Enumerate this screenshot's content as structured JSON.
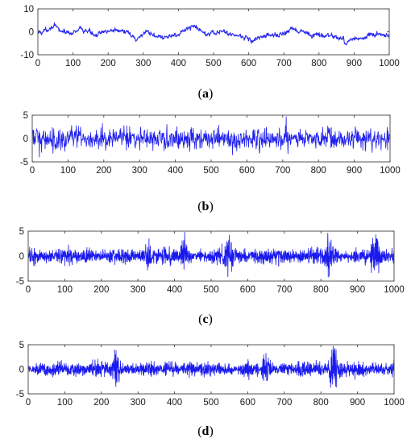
{
  "figure": {
    "panels": [
      {
        "caption_letter": "a"
      },
      {
        "caption_letter": "b"
      },
      {
        "caption_letter": "c"
      },
      {
        "caption_letter": "d"
      }
    ]
  },
  "chart_data": [
    {
      "type": "line",
      "panel": "a",
      "title": "",
      "xlabel": "",
      "ylabel": "",
      "xlim": [
        0,
        1000
      ],
      "ylim": [
        -10,
        10
      ],
      "xticks": [
        0,
        100,
        200,
        300,
        400,
        500,
        600,
        700,
        800,
        900,
        1000
      ],
      "yticks": [
        10,
        0,
        -10
      ],
      "series_color": "#2a2aee",
      "legend": "none",
      "grid": false,
      "series": [
        {
          "n_points": 1000,
          "profile_x": [
            0,
            20,
            40,
            55,
            70,
            100,
            120,
            150,
            170,
            200,
            230,
            260,
            280,
            300,
            330,
            360,
            400,
            420,
            450,
            470,
            500,
            530,
            560,
            590,
            610,
            640,
            670,
            700,
            720,
            750,
            780,
            800,
            830,
            860,
            880,
            900,
            920,
            950,
            980,
            1000
          ],
          "profile_y": [
            -0.5,
            0.5,
            2.5,
            1.5,
            0,
            -0.5,
            1,
            0,
            -1.5,
            0.5,
            1,
            -1,
            -3.5,
            -0.5,
            -1.5,
            -2.5,
            -1,
            1,
            2.5,
            0,
            -0.5,
            0,
            -1.5,
            -2,
            -4,
            -2,
            -1.5,
            -1,
            1,
            0,
            -1.5,
            -1,
            -2,
            -2.5,
            -5,
            -2.5,
            -3,
            -1.5,
            -1,
            -2
          ],
          "noise_amplitude": 1.1
        }
      ]
    },
    {
      "type": "line",
      "panel": "b",
      "title": "",
      "xlabel": "",
      "ylabel": "",
      "xlim": [
        0,
        1000
      ],
      "ylim": [
        -5,
        5
      ],
      "xticks": [
        0,
        100,
        200,
        300,
        400,
        500,
        600,
        700,
        800,
        900,
        1000
      ],
      "yticks": [
        5,
        0,
        -5
      ],
      "series_color": "#2020ee",
      "legend": "none",
      "grid": false,
      "series": [
        {
          "n_points": 1000,
          "mean": 0,
          "typical_amplitude": 2.0,
          "peaks": [
            {
              "x": 20,
              "y": -4
            },
            {
              "x": 110,
              "y": 2.8
            },
            {
              "x": 300,
              "y": -2.5
            },
            {
              "x": 560,
              "y": -3.5
            },
            {
              "x": 710,
              "y": 4.7
            },
            {
              "x": 715,
              "y": -3.3
            },
            {
              "x": 950,
              "y": -3
            }
          ]
        }
      ]
    },
    {
      "type": "line",
      "panel": "c",
      "title": "",
      "xlabel": "",
      "ylabel": "",
      "xlim": [
        0,
        1000
      ],
      "ylim": [
        -5,
        5
      ],
      "xticks": [
        0,
        100,
        200,
        300,
        400,
        500,
        600,
        700,
        800,
        900,
        1000
      ],
      "yticks": [
        5,
        0,
        -5
      ],
      "series_color": "#1a1aee",
      "legend": "none",
      "grid": false,
      "series": [
        {
          "n_points": 2000,
          "mean": 0,
          "typical_amplitude": 1.2,
          "bursts": [
            {
              "x": 330,
              "amp": 3.5
            },
            {
              "x": 550,
              "amp": 4.2
            },
            {
              "x": 820,
              "amp": -4.2
            },
            {
              "x": 950,
              "amp": 4.3
            },
            {
              "x": 425,
              "amp": 3.2
            }
          ]
        }
      ]
    },
    {
      "type": "line",
      "panel": "d",
      "title": "",
      "xlabel": "",
      "ylabel": "",
      "xlim": [
        0,
        1000
      ],
      "ylim": [
        -5,
        5
      ],
      "xticks": [
        0,
        100,
        200,
        300,
        400,
        500,
        600,
        700,
        800,
        900,
        1000
      ],
      "yticks": [
        5,
        0,
        -5
      ],
      "series_color": "#1a1aee",
      "legend": "none",
      "grid": false,
      "series": [
        {
          "n_points": 2000,
          "mean": 0,
          "typical_amplitude": 1.1,
          "bursts": [
            {
              "x": 240,
              "amp": 3.8
            },
            {
              "x": 830,
              "amp": 4.0
            },
            {
              "x": 840,
              "amp": -3.5
            },
            {
              "x": 650,
              "amp": 3.3
            }
          ]
        }
      ]
    }
  ]
}
